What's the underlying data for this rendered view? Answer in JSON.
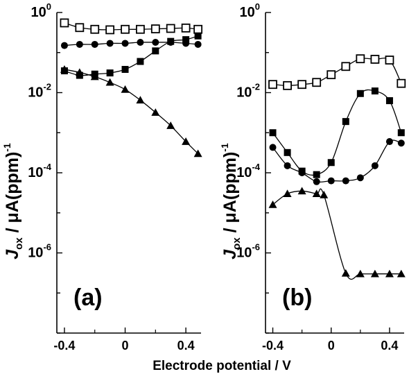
{
  "figure": {
    "xlabel": "Electrode potential  /  V",
    "ylabel_main": "J",
    "ylabel_sub": "ox",
    "ylabel_rest": " / μA(ppm)",
    "ylabel_exp": "-1"
  },
  "chart_data": [
    {
      "type": "scatter",
      "panel_label": "(a)",
      "x_scale": "linear",
      "y_scale": "log",
      "xlim": [
        -0.45,
        0.5
      ],
      "ylim": [
        1e-08,
        1
      ],
      "x_ticks": [
        -0.4,
        0,
        0.4
      ],
      "x_tick_labels": [
        "-0.4",
        "0",
        "0.4"
      ],
      "y_ticks": [
        1,
        0.01,
        0.0001,
        1e-06
      ],
      "y_tick_labels": [
        {
          "base": "10",
          "exp": "0"
        },
        {
          "base": "10",
          "exp": "-2"
        },
        {
          "base": "10",
          "exp": "-4"
        },
        {
          "base": "10",
          "exp": "-6"
        }
      ],
      "grid": false,
      "series": [
        {
          "marker": "open-square",
          "x": [
            -0.4,
            -0.3,
            -0.2,
            -0.1,
            0.0,
            0.1,
            0.2,
            0.3,
            0.4,
            0.48
          ],
          "y": [
            0.55,
            0.42,
            0.38,
            0.37,
            0.38,
            0.38,
            0.39,
            0.4,
            0.41,
            0.38
          ]
        },
        {
          "marker": "filled-circle",
          "x": [
            -0.4,
            -0.3,
            -0.2,
            -0.1,
            0.0,
            0.1,
            0.2,
            0.3,
            0.4,
            0.48
          ],
          "y": [
            0.15,
            0.16,
            0.16,
            0.17,
            0.17,
            0.18,
            0.18,
            0.18,
            0.17,
            0.16
          ]
        },
        {
          "marker": "filled-square",
          "x": [
            -0.4,
            -0.3,
            -0.2,
            -0.1,
            0.0,
            0.1,
            0.2,
            0.3,
            0.4,
            0.48
          ],
          "y": [
            0.035,
            0.027,
            0.029,
            0.031,
            0.038,
            0.06,
            0.11,
            0.19,
            0.21,
            0.26
          ]
        },
        {
          "marker": "filled-triangle",
          "x": [
            -0.4,
            -0.3,
            -0.2,
            -0.1,
            0.0,
            0.1,
            0.2,
            0.3,
            0.4,
            0.48
          ],
          "y": [
            0.038,
            0.032,
            0.025,
            0.018,
            0.012,
            0.0065,
            0.0032,
            0.0015,
            0.0006,
            0.0003
          ]
        }
      ]
    },
    {
      "type": "scatter",
      "panel_label": "(b)",
      "x_scale": "linear",
      "y_scale": "log",
      "xlim": [
        -0.45,
        0.5
      ],
      "ylim": [
        1e-08,
        1
      ],
      "x_ticks": [
        -0.4,
        0,
        0.4
      ],
      "x_tick_labels": [
        "-0.4",
        "0",
        "0.4"
      ],
      "y_ticks": [
        1,
        0.01,
        0.0001,
        1e-06
      ],
      "y_tick_labels": [
        {
          "base": "10",
          "exp": "0"
        },
        {
          "base": "10",
          "exp": "-2"
        },
        {
          "base": "10",
          "exp": "-4"
        },
        {
          "base": "10",
          "exp": "-6"
        }
      ],
      "grid": false,
      "series": [
        {
          "marker": "open-square",
          "x": [
            -0.4,
            -0.3,
            -0.2,
            -0.1,
            0.0,
            0.1,
            0.2,
            0.3,
            0.4,
            0.48
          ],
          "y": [
            0.016,
            0.015,
            0.016,
            0.018,
            0.028,
            0.045,
            0.07,
            0.068,
            0.065,
            0.017
          ]
        },
        {
          "marker": "filled-square",
          "x": [
            -0.4,
            -0.3,
            -0.2,
            -0.1,
            0.0,
            0.1,
            0.2,
            0.3,
            0.4,
            0.48
          ],
          "y": [
            0.001,
            0.00032,
            0.00011,
            9e-05,
            0.00018,
            0.0019,
            0.0095,
            0.011,
            0.0063,
            0.001
          ]
        },
        {
          "marker": "filled-circle",
          "x": [
            -0.4,
            -0.3,
            -0.2,
            -0.1,
            0.0,
            0.1,
            0.2,
            0.3,
            0.4,
            0.48
          ],
          "y": [
            0.00043,
            0.00015,
            0.0001,
            6e-05,
            6.3e-05,
            6.3e-05,
            7.5e-05,
            0.00015,
            0.0006,
            0.00055
          ]
        },
        {
          "marker": "filled-triangle",
          "x": [
            -0.4,
            -0.3,
            -0.2,
            -0.1,
            -0.05,
            0.1,
            0.2,
            0.3,
            0.4,
            0.48
          ],
          "y": [
            1.6e-05,
            3e-05,
            3.5e-05,
            3e-05,
            2.8e-05,
            3.1e-07,
            3e-07,
            3e-07,
            3e-07,
            3e-07
          ]
        }
      ]
    }
  ]
}
